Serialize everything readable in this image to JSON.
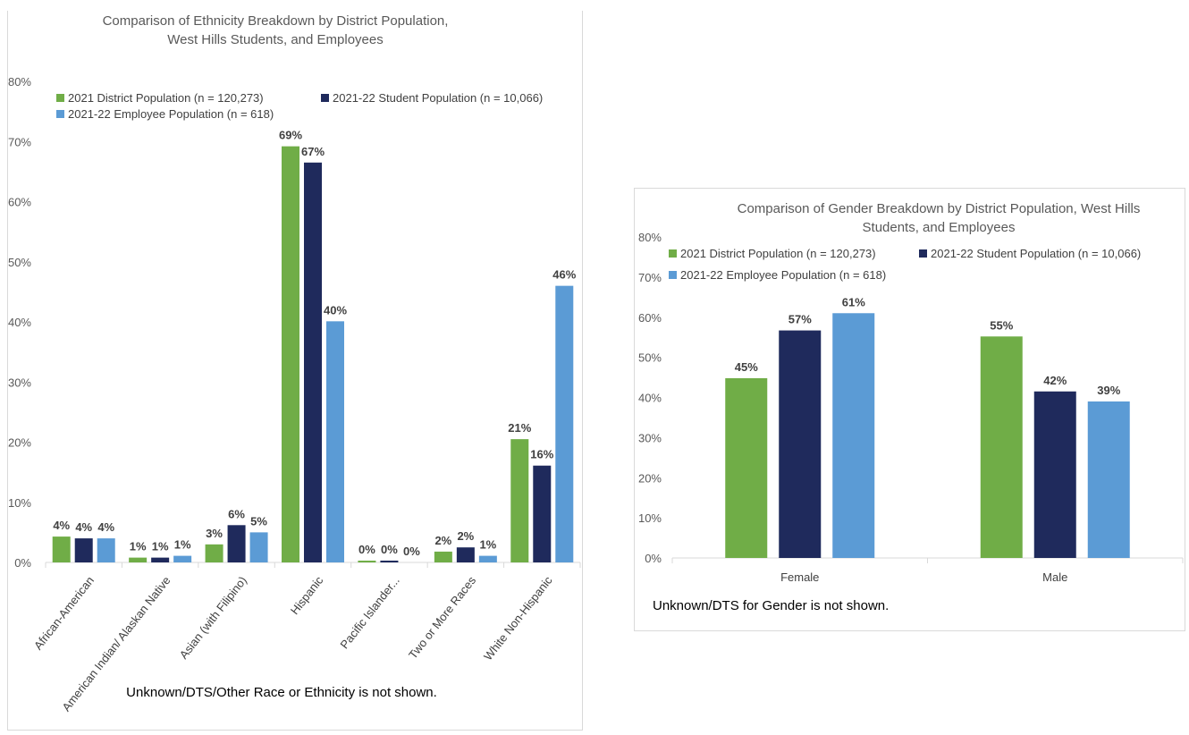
{
  "chart_data": [
    {
      "type": "bar",
      "title": "Comparison of Ethnicity Breakdown by District Population, West Hills Students, and Employees",
      "title_lines": [
        "Comparison of Ethnicity Breakdown by District Population,",
        "West Hills Students, and Employees"
      ],
      "categories": [
        "African-American",
        "American Indian/ Alaskan Native",
        "Asian (with Filipino)",
        "Hispanic",
        "Pacific Islander...",
        "Two or More Races",
        "White Non-Hispanic"
      ],
      "series": [
        {
          "name": "2021 District Population (n = 120,273)",
          "color": "#70ad47",
          "values": [
            4.3,
            0.8,
            3.0,
            69.2,
            0.3,
            1.8,
            20.5
          ],
          "labels": [
            "4%",
            "1%",
            "3%",
            "69%",
            "0%",
            "2%",
            "21%"
          ]
        },
        {
          "name": "2021-22 Student Population (n = 10,066)",
          "color": "#1f2a5c",
          "values": [
            4.0,
            0.8,
            6.2,
            66.5,
            0.3,
            2.5,
            16.1
          ],
          "labels": [
            "4%",
            "1%",
            "6%",
            "67%",
            "0%",
            "2%",
            "16%"
          ]
        },
        {
          "name": "2021-22 Employee Population (n = 618)",
          "color": "#5b9bd5",
          "values": [
            4.0,
            1.1,
            5.0,
            40.1,
            0.0,
            1.1,
            46.0
          ],
          "labels": [
            "4%",
            "1%",
            "5%",
            "40%",
            "0%",
            "1%",
            "46%"
          ]
        }
      ],
      "ylim": [
        0,
        80
      ],
      "yticks": [
        "0%",
        "10%",
        "20%",
        "30%",
        "40%",
        "50%",
        "60%",
        "70%",
        "80%"
      ],
      "grid": false,
      "legend": "top-left",
      "note": "Unknown/DTS/Other Race or Ethnicity is not shown."
    },
    {
      "type": "bar",
      "title": "Comparison of Gender Breakdown by District Population, West Hills Students, and Employees",
      "title_lines": [
        "Comparison of Gender Breakdown by District Population, West Hills",
        "Students, and Employees"
      ],
      "categories": [
        "Female",
        "Male"
      ],
      "series": [
        {
          "name": "2021 District Population (n = 120,273)",
          "color": "#70ad47",
          "values": [
            44.8,
            55.2
          ],
          "labels": [
            "45%",
            "55%"
          ]
        },
        {
          "name": "2021-22 Student Population (n = 10,066)",
          "color": "#1f2a5c",
          "values": [
            56.7,
            41.5
          ],
          "labels": [
            "57%",
            "42%"
          ]
        },
        {
          "name": "2021-22 Employee Population (n = 618)",
          "color": "#5b9bd5",
          "values": [
            61.0,
            39.0
          ],
          "labels": [
            "61%",
            "39%"
          ]
        }
      ],
      "ylim": [
        0,
        80
      ],
      "yticks": [
        "0%",
        "10%",
        "20%",
        "30%",
        "40%",
        "50%",
        "60%",
        "70%",
        "80%"
      ],
      "grid": false,
      "legend": "top",
      "note": "Unknown/DTS for Gender is not shown."
    }
  ]
}
